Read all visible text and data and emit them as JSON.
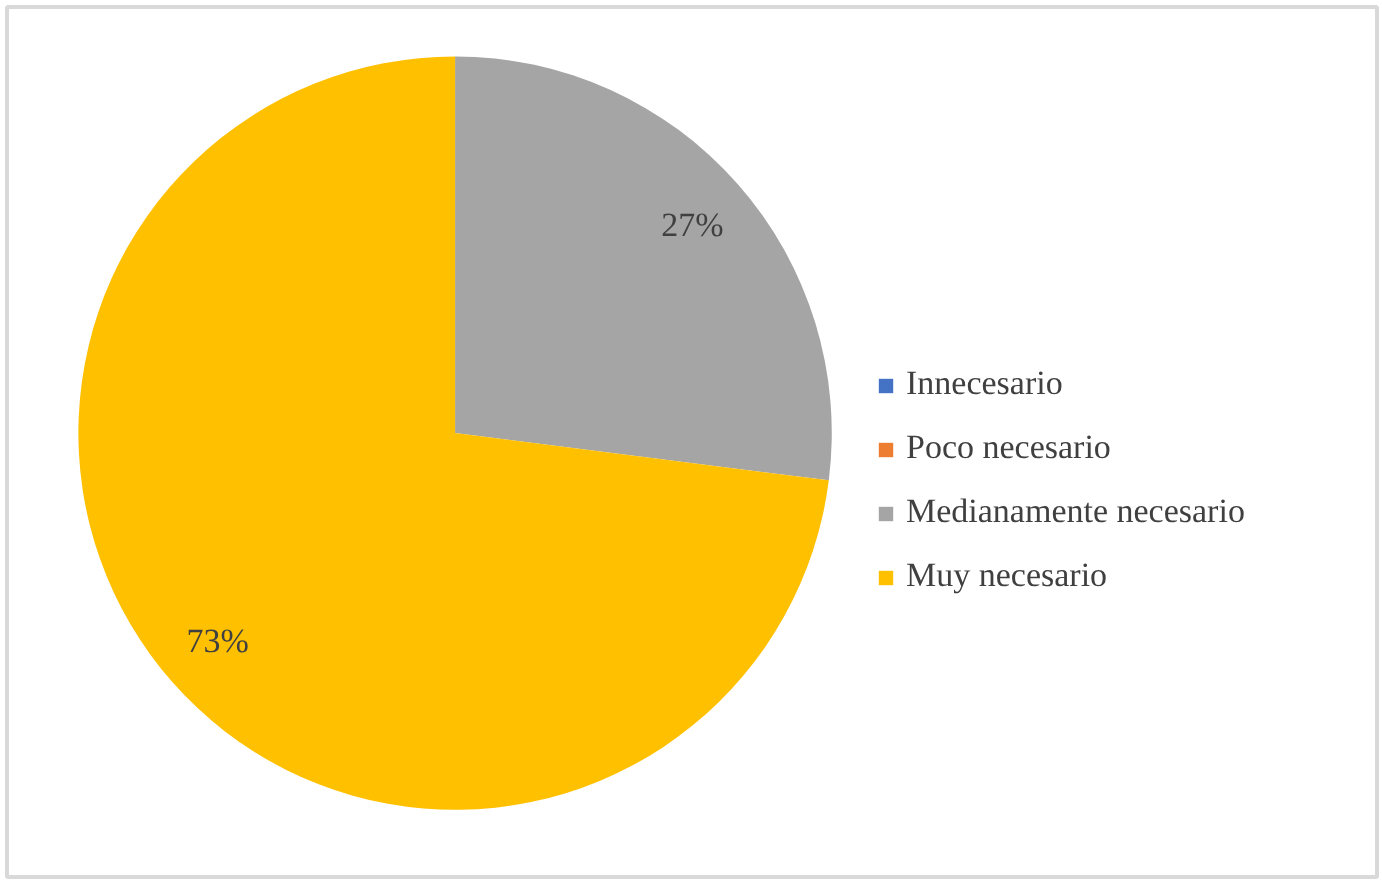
{
  "chart_data": {
    "type": "pie",
    "categories": [
      "Innecesario",
      "Poco necesario",
      "Medianamente necesario",
      "Muy necesario"
    ],
    "values": [
      0,
      0,
      27,
      73
    ],
    "colors": [
      "#4472c4",
      "#ed7d31",
      "#a5a5a5",
      "#ffc000"
    ],
    "value_labels": [
      null,
      null,
      "27%",
      "73%"
    ],
    "legend": "right"
  }
}
